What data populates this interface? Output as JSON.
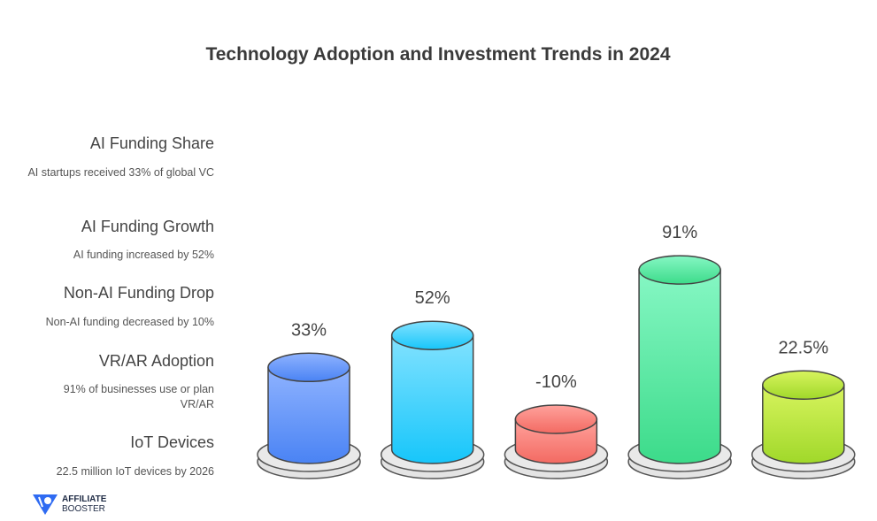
{
  "chart_data": {
    "type": "bar",
    "title": "Technology Adoption and Investment Trends in 2024",
    "categories": [
      "AI Funding Share",
      "AI Funding Growth",
      "Non-AI Funding Drop",
      "VR/AR Adoption",
      "IoT Devices"
    ],
    "values": [
      33,
      52,
      -10,
      91,
      22.5
    ],
    "data_labels": [
      "33%",
      "52%",
      "-10%",
      "91%",
      "22.5%"
    ],
    "descriptions": [
      "AI startups received 33% of global VC",
      "AI funding increased by 52%",
      "Non-AI funding decreased by 10%",
      "91% of businesses use or plan VR/AR",
      "22.5 million IoT devices by 2026"
    ],
    "colors": [
      [
        "#8fb3ff",
        "#4a83f4"
      ],
      [
        "#82e2ff",
        "#17c6fa"
      ],
      [
        "#ffa29c",
        "#f36a62"
      ],
      [
        "#86f7c4",
        "#3cdb8a"
      ],
      [
        "#d8f45e",
        "#a0d82a"
      ]
    ],
    "grid": false
  },
  "logo": {
    "line1": "AFFILIATE",
    "line2": "BOOSTER"
  }
}
